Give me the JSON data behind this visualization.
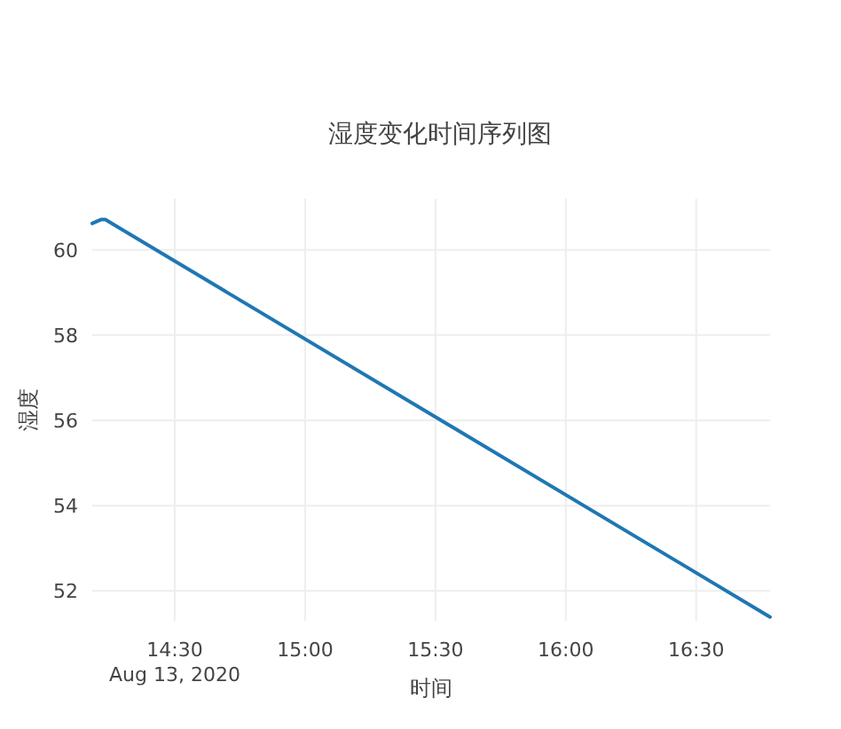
{
  "chart_data": {
    "type": "line",
    "title": "湿度变化时间序列图",
    "xlabel": "时间",
    "ylabel": "湿度",
    "x": [
      "2020-08-13T14:11",
      "2020-08-13T14:13",
      "2020-08-13T14:14",
      "2020-08-13T16:47"
    ],
    "series": [
      {
        "color": "#1f77b4",
        "values": [
          60.62,
          60.71,
          60.71,
          51.39
        ]
      }
    ],
    "xlim": [
      "2020-08-13T14:11",
      "2020-08-13T16:47"
    ],
    "ylim": [
      51.3,
      61.2
    ],
    "xticks": [
      {
        "value": "2020-08-13T14:30",
        "label": "14:30"
      },
      {
        "value": "2020-08-13T15:00",
        "label": "15:00"
      },
      {
        "value": "2020-08-13T15:30",
        "label": "15:30"
      },
      {
        "value": "2020-08-13T16:00",
        "label": "16:00"
      },
      {
        "value": "2020-08-13T16:30",
        "label": "16:30"
      }
    ],
    "yticks": [
      52,
      54,
      56,
      58,
      60
    ],
    "annotations": [
      "Aug 13, 2020"
    ],
    "grid": true,
    "marker": "none",
    "line_style": "solid"
  }
}
